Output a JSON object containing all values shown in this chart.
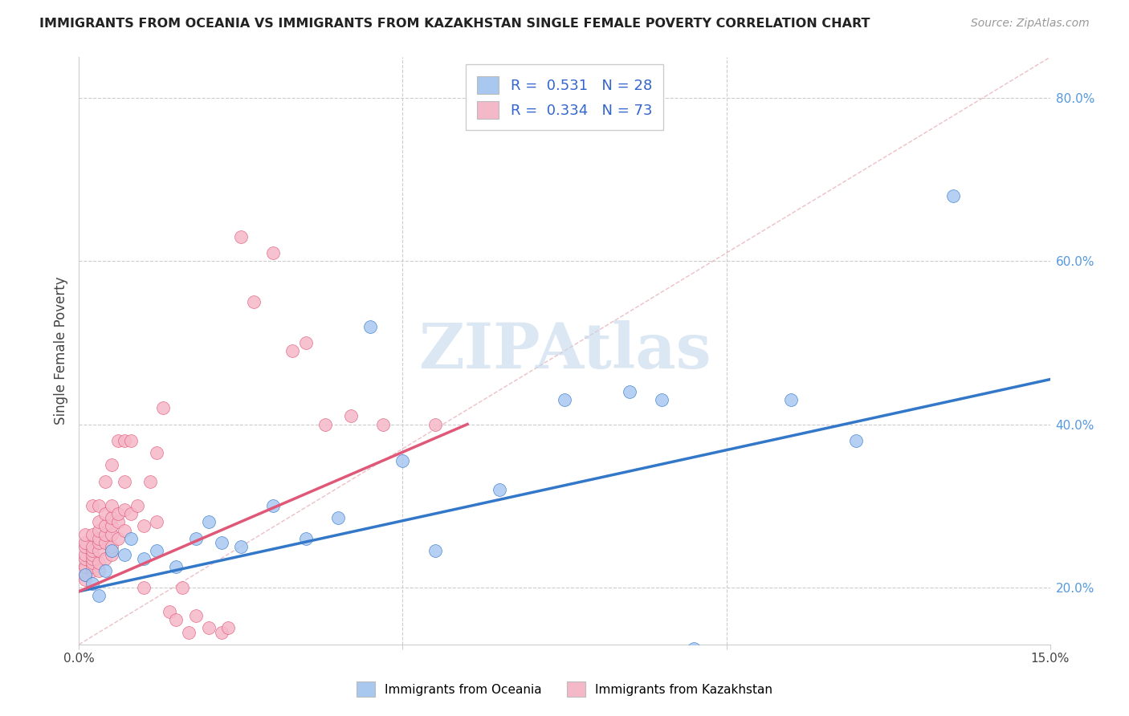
{
  "title": "IMMIGRANTS FROM OCEANIA VS IMMIGRANTS FROM KAZAKHSTAN SINGLE FEMALE POVERTY CORRELATION CHART",
  "source": "Source: ZipAtlas.com",
  "ylabel": "Single Female Poverty",
  "xmin": 0.0,
  "xmax": 0.15,
  "ymin": 0.13,
  "ymax": 0.85,
  "y_ticks_right": [
    0.2,
    0.4,
    0.6,
    0.8
  ],
  "legend_label1": "Immigrants from Oceania",
  "legend_label2": "Immigrants from Kazakhstan",
  "legend_R1": "0.531",
  "legend_N1": "28",
  "legend_R2": "0.334",
  "legend_N2": "73",
  "color_blue": "#A8C8F0",
  "color_pink": "#F5B8C8",
  "color_blue_line": "#3378C8",
  "color_pink_line": "#E05878",
  "color_diag_line": "#E8B0B8",
  "watermark": "ZIPAtlas",
  "watermark_color": "#C5D8EE",
  "blue_x": [
    0.001,
    0.002,
    0.003,
    0.004,
    0.005,
    0.007,
    0.008,
    0.01,
    0.012,
    0.015,
    0.018,
    0.02,
    0.022,
    0.025,
    0.03,
    0.035,
    0.04,
    0.045,
    0.05,
    0.055,
    0.065,
    0.075,
    0.085,
    0.09,
    0.095,
    0.11,
    0.12,
    0.135
  ],
  "blue_y": [
    0.215,
    0.205,
    0.19,
    0.22,
    0.245,
    0.24,
    0.26,
    0.235,
    0.245,
    0.225,
    0.26,
    0.28,
    0.255,
    0.25,
    0.3,
    0.26,
    0.285,
    0.52,
    0.355,
    0.245,
    0.32,
    0.43,
    0.44,
    0.43,
    0.125,
    0.43,
    0.38,
    0.68
  ],
  "pink_x": [
    0.001,
    0.001,
    0.001,
    0.001,
    0.001,
    0.001,
    0.001,
    0.001,
    0.001,
    0.002,
    0.002,
    0.002,
    0.002,
    0.002,
    0.002,
    0.002,
    0.002,
    0.002,
    0.003,
    0.003,
    0.003,
    0.003,
    0.003,
    0.003,
    0.003,
    0.003,
    0.004,
    0.004,
    0.004,
    0.004,
    0.004,
    0.004,
    0.005,
    0.005,
    0.005,
    0.005,
    0.005,
    0.005,
    0.005,
    0.006,
    0.006,
    0.006,
    0.006,
    0.007,
    0.007,
    0.007,
    0.007,
    0.008,
    0.008,
    0.009,
    0.01,
    0.01,
    0.011,
    0.012,
    0.012,
    0.013,
    0.014,
    0.015,
    0.016,
    0.017,
    0.018,
    0.02,
    0.022,
    0.023,
    0.025,
    0.027,
    0.03,
    0.033,
    0.035,
    0.038,
    0.042,
    0.047,
    0.055
  ],
  "pink_y": [
    0.21,
    0.215,
    0.225,
    0.225,
    0.235,
    0.24,
    0.25,
    0.255,
    0.265,
    0.22,
    0.225,
    0.23,
    0.235,
    0.24,
    0.245,
    0.25,
    0.265,
    0.3,
    0.22,
    0.23,
    0.245,
    0.255,
    0.26,
    0.27,
    0.28,
    0.3,
    0.235,
    0.255,
    0.265,
    0.275,
    0.29,
    0.33,
    0.24,
    0.25,
    0.265,
    0.275,
    0.285,
    0.3,
    0.35,
    0.26,
    0.28,
    0.29,
    0.38,
    0.27,
    0.295,
    0.33,
    0.38,
    0.29,
    0.38,
    0.3,
    0.2,
    0.275,
    0.33,
    0.28,
    0.365,
    0.42,
    0.17,
    0.16,
    0.2,
    0.145,
    0.165,
    0.15,
    0.145,
    0.15,
    0.63,
    0.55,
    0.61,
    0.49,
    0.5,
    0.4,
    0.41,
    0.4,
    0.4
  ],
  "blue_trend_x": [
    0.0,
    0.15
  ],
  "blue_trend_y": [
    0.195,
    0.455
  ],
  "pink_trend_x": [
    0.0,
    0.06
  ],
  "pink_trend_y": [
    0.195,
    0.4
  ]
}
